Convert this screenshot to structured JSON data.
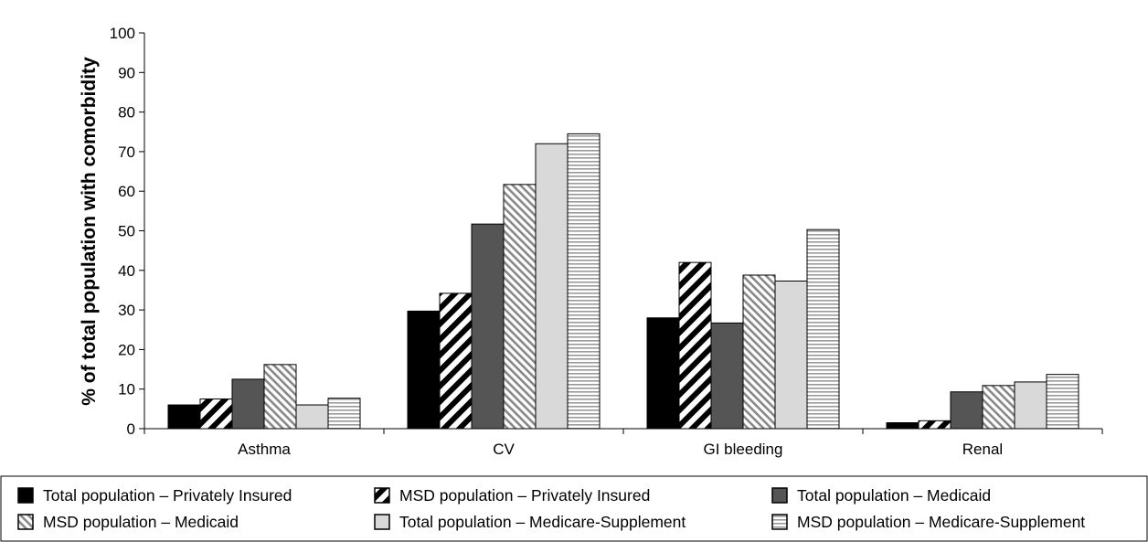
{
  "chart_data": {
    "type": "bar",
    "title": "",
    "xlabel": "",
    "ylabel": "% of total population with comorbidity",
    "ylim": [
      0,
      100
    ],
    "yticks": [
      0,
      10,
      20,
      30,
      40,
      50,
      60,
      70,
      80,
      90,
      100
    ],
    "grid": false,
    "legend_position": "bottom",
    "categories": [
      "Asthma",
      "CV",
      "GI bleeding",
      "Renal"
    ],
    "series": [
      {
        "name": "Total population – Privately Insured",
        "pattern": "solid-black",
        "values": [
          6,
          29.7,
          28,
          1.5
        ]
      },
      {
        "name": "MSD population – Privately Insured",
        "pattern": "wide-diagonal-black",
        "values": [
          7.5,
          34.2,
          42,
          2
        ]
      },
      {
        "name": "Total population – Medicaid",
        "pattern": "solid-dark-gray",
        "values": [
          12.5,
          51.7,
          26.7,
          9.3
        ]
      },
      {
        "name": "MSD population – Medicaid",
        "pattern": "fine-diagonal-gray",
        "values": [
          16.2,
          61.7,
          38.8,
          10.9
        ]
      },
      {
        "name": "Total population – Medicare-Supplement",
        "pattern": "solid-light-gray",
        "values": [
          6,
          72,
          37.3,
          11.8
        ]
      },
      {
        "name": "MSD population – Medicare-Supplement",
        "pattern": "horizontal-lines",
        "values": [
          7.7,
          74.5,
          50.3,
          13.7
        ]
      }
    ],
    "colors": {
      "solid_black": "#000000",
      "dark_gray": "#555555",
      "light_gray": "#d9d9d9",
      "pattern_gray": "#888888"
    }
  }
}
